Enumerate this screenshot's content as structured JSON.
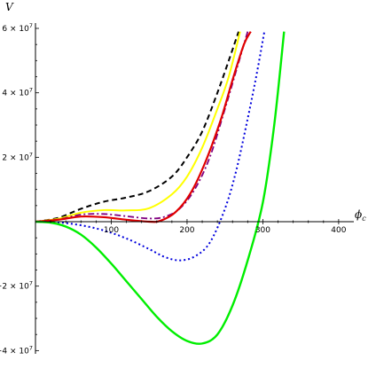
{
  "chart_data": {
    "type": "line",
    "title": "",
    "xlabel": "ϕ",
    "xlabel_subscript": "c",
    "ylabel": "V",
    "xlim": [
      0,
      420
    ],
    "ylim": [
      -41000000.0,
      60000000.0
    ],
    "x_ticks": [
      {
        "value": 100,
        "label": "100"
      },
      {
        "value": 200,
        "label": "200"
      },
      {
        "value": 300,
        "label": "300"
      },
      {
        "value": 400,
        "label": "400"
      }
    ],
    "y_ticks": [
      {
        "value": 60000000,
        "mantissa": "6",
        "exponent": "7"
      },
      {
        "value": 40000000,
        "mantissa": "4",
        "exponent": "7"
      },
      {
        "value": 20000000,
        "mantissa": "2",
        "exponent": "7"
      },
      {
        "value": -20000000,
        "mantissa": "−2",
        "exponent": "7"
      },
      {
        "value": -40000000,
        "mantissa": "−4",
        "exponent": "7"
      }
    ],
    "legend": "none",
    "grid": false,
    "series": [
      {
        "color": "#000000",
        "dash": "6,4",
        "width": 2,
        "x": [
          0,
          30,
          60,
          90,
          120,
          150,
          180,
          200,
          220,
          240,
          255,
          268
        ],
        "y": [
          0,
          1200000,
          4000000,
          6200000,
          7500000,
          9500000,
          14000000,
          20000000,
          28000000,
          40000000,
          50000000,
          59000000
        ]
      },
      {
        "color": "#ffff00",
        "dash": "",
        "width": 2,
        "x": [
          0,
          30,
          60,
          90,
          120,
          150,
          180,
          200,
          220,
          240,
          255,
          270
        ],
        "y": [
          0,
          900000,
          2800000,
          3600000,
          3500000,
          4200000,
          8500000,
          14000000,
          23000000,
          35000000,
          45000000,
          59000000
        ]
      },
      {
        "color": "#800080",
        "dash": "7,3,2,3",
        "width": 1.8,
        "x": [
          0,
          30,
          60,
          90,
          120,
          150,
          170,
          190,
          210,
          230,
          250,
          265,
          280
        ],
        "y": [
          0,
          700000,
          2200000,
          2400000,
          1700000,
          1000000,
          1500000,
          4000000,
          10000000,
          20000000,
          35000000,
          47000000,
          59000000
        ]
      },
      {
        "color": "#e00000",
        "dash": "",
        "width": 2.2,
        "x": [
          0,
          30,
          60,
          90,
          120,
          150,
          165,
          185,
          205,
          225,
          245,
          260,
          275,
          284
        ],
        "y": [
          0,
          600000,
          1600000,
          1400000,
          600000,
          0,
          300000,
          3000000,
          9000000,
          19000000,
          32000000,
          44000000,
          55000000,
          59000000
        ]
      },
      {
        "color": "#0000dd",
        "dash": "2,3",
        "width": 2,
        "x": [
          0,
          30,
          60,
          90,
          120,
          150,
          170,
          190,
          210,
          230,
          250,
          265,
          280,
          292,
          302
        ],
        "y": [
          0,
          -200000,
          -1100000,
          -2700000,
          -5200000,
          -8500000,
          -10900000,
          -12000000,
          -10800000,
          -6500000,
          4000000,
          16000000,
          32000000,
          46000000,
          59000000
        ]
      },
      {
        "color": "#00ee00",
        "dash": "",
        "width": 2.4,
        "x": [
          0,
          20,
          40,
          60,
          80,
          100,
          120,
          140,
          160,
          180,
          200,
          220,
          240,
          260,
          280,
          300,
          315,
          328
        ],
        "y": [
          0,
          -300000,
          -1500000,
          -4000000,
          -8000000,
          -13000000,
          -18500000,
          -24000000,
          -29500000,
          -34000000,
          -37000000,
          -37800000,
          -35000000,
          -26000000,
          -12000000,
          6000000,
          30000000,
          59000000
        ]
      }
    ]
  }
}
